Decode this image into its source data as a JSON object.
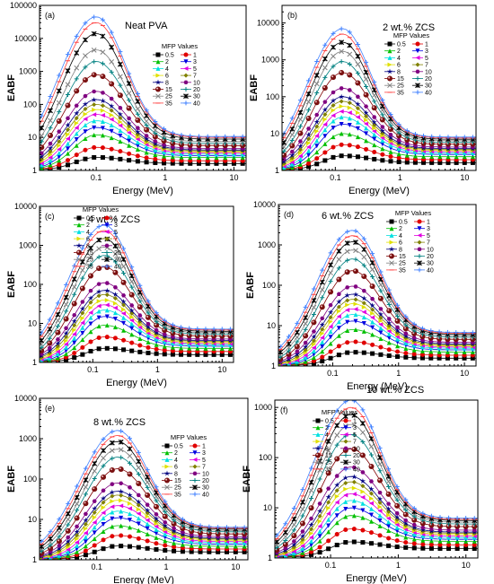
{
  "figure": {
    "shared": {
      "ylabel": "EABF",
      "xlabel": "Energy (MeV)",
      "legend_title": "MFP Values",
      "x_tick_labels": [
        "0.1",
        "1",
        "10"
      ],
      "mfp_values": [
        "0.5",
        "1",
        "2",
        "3",
        "4",
        "5",
        "6",
        "7",
        "8",
        "10",
        "15",
        "20",
        "25",
        "30",
        "35",
        "40"
      ],
      "series_colors": [
        "#000000",
        "#e00000",
        "#00c000",
        "#0000e0",
        "#00e0e0",
        "#e000e0",
        "#e0e000",
        "#808000",
        "#000080",
        "#800080",
        "#800000",
        "#008080",
        "#808080",
        "#000000",
        "#ff4040",
        "#4080ff"
      ],
      "series_markers": [
        "square",
        "circle",
        "triangle-up",
        "triangle-down",
        "triangle-up",
        "triangle-left",
        "triangle-right",
        "diamond",
        "star",
        "hexagon",
        "ball",
        "plus",
        "cross",
        "x-star",
        "dash",
        "plus"
      ],
      "x_scale": "log",
      "y_scale": "log",
      "xlim": [
        0.015,
        15
      ]
    },
    "panels": [
      {
        "id": "a",
        "tag": "(a)",
        "title": "Neat PVA",
        "peak_energy": 0.1,
        "peak_top": 45000,
        "yticks": [
          "1",
          "10",
          "100",
          "1000",
          "10000",
          "100000"
        ],
        "ylim": [
          1,
          100000
        ]
      },
      {
        "id": "b",
        "tag": "(b)",
        "title": "2 wt.% ZCS",
        "peak_energy": 0.13,
        "peak_top": 7000,
        "yticks": [
          "1",
          "10",
          "100",
          "1000",
          "10000"
        ],
        "ylim": [
          1,
          30000
        ]
      },
      {
        "id": "c",
        "tag": "(c)",
        "title": "4 wt.% ZCS",
        "peak_energy": 0.15,
        "peak_top": 3300,
        "yticks": [
          "1",
          "10",
          "100",
          "1000",
          "10000"
        ],
        "ylim": [
          1,
          10000
        ]
      },
      {
        "id": "d",
        "tag": "(d)",
        "title": "6 wt.% ZCS",
        "peak_energy": 0.2,
        "peak_top": 2300,
        "yticks": [
          "1",
          "10",
          "100",
          "1000",
          "10000"
        ],
        "ylim": [
          1,
          10000
        ]
      },
      {
        "id": "e",
        "tag": "(e)",
        "title": "8 wt.% ZCS",
        "peak_energy": 0.2,
        "peak_top": 1600,
        "yticks": [
          "1",
          "10",
          "100",
          "1000",
          "10000"
        ],
        "ylim": [
          1,
          10000
        ]
      },
      {
        "id": "f",
        "tag": "(f)",
        "title": "10 wt.% ZCS",
        "peak_energy": 0.2,
        "peak_top": 1400,
        "yticks": [
          "1",
          "10",
          "100",
          "1000"
        ],
        "ylim": [
          1,
          1400
        ]
      }
    ]
  },
  "chart_data": [
    {
      "type": "line",
      "panel": "(a)",
      "title": "Neat PVA",
      "xlabel": "Energy (MeV)",
      "ylabel": "EABF",
      "x_scale": "log",
      "y_scale": "log",
      "xlim": [
        0.015,
        15
      ],
      "ylim": [
        1,
        100000
      ],
      "series": [
        {
          "name": "0.5",
          "peak": 2.5
        },
        {
          "name": "1",
          "peak": 5
        },
        {
          "name": "2",
          "peak": 12
        },
        {
          "name": "3",
          "peak": 20
        },
        {
          "name": "4",
          "peak": 32
        },
        {
          "name": "5",
          "peak": 50
        },
        {
          "name": "6",
          "peak": 70
        },
        {
          "name": "7",
          "peak": 100
        },
        {
          "name": "8",
          "peak": 140
        },
        {
          "name": "10",
          "peak": 250
        },
        {
          "name": "15",
          "peak": 800
        },
        {
          "name": "20",
          "peak": 2000
        },
        {
          "name": "25",
          "peak": 4500
        },
        {
          "name": "30",
          "peak": 14000
        },
        {
          "name": "35",
          "peak": 30000
        },
        {
          "name": "40",
          "peak": 45000
        }
      ]
    },
    {
      "type": "line",
      "panel": "(b)",
      "title": "2 wt.% ZCS",
      "xlabel": "Energy (MeV)",
      "ylabel": "EABF",
      "x_scale": "log",
      "y_scale": "log",
      "xlim": [
        0.015,
        15
      ],
      "ylim": [
        1,
        30000
      ],
      "series": [
        {
          "name": "0.5",
          "peak": 2.5
        },
        {
          "name": "1",
          "peak": 5
        },
        {
          "name": "2",
          "peak": 10
        },
        {
          "name": "3",
          "peak": 18
        },
        {
          "name": "4",
          "peak": 28
        },
        {
          "name": "5",
          "peak": 40
        },
        {
          "name": "6",
          "peak": 55
        },
        {
          "name": "7",
          "peak": 75
        },
        {
          "name": "8",
          "peak": 100
        },
        {
          "name": "10",
          "peak": 170
        },
        {
          "name": "15",
          "peak": 450
        },
        {
          "name": "20",
          "peak": 900
        },
        {
          "name": "25",
          "peak": 1700
        },
        {
          "name": "30",
          "peak": 3000
        },
        {
          "name": "35",
          "peak": 5000
        },
        {
          "name": "40",
          "peak": 7000
        }
      ]
    },
    {
      "type": "line",
      "panel": "(c)",
      "title": "4 wt.% ZCS",
      "xlabel": "Energy (MeV)",
      "ylabel": "EABF",
      "x_scale": "log",
      "y_scale": "log",
      "xlim": [
        0.015,
        15
      ],
      "ylim": [
        1,
        10000
      ],
      "series": [
        {
          "name": "0.5",
          "peak": 2.3
        },
        {
          "name": "1",
          "peak": 4.5
        },
        {
          "name": "2",
          "peak": 9
        },
        {
          "name": "3",
          "peak": 15
        },
        {
          "name": "4",
          "peak": 22
        },
        {
          "name": "5",
          "peak": 30
        },
        {
          "name": "6",
          "peak": 40
        },
        {
          "name": "7",
          "peak": 55
        },
        {
          "name": "8",
          "peak": 70
        },
        {
          "name": "10",
          "peak": 110
        },
        {
          "name": "15",
          "peak": 280
        },
        {
          "name": "20",
          "peak": 550
        },
        {
          "name": "25",
          "peak": 900
        },
        {
          "name": "30",
          "peak": 1500
        },
        {
          "name": "35",
          "peak": 2400
        },
        {
          "name": "40",
          "peak": 3300
        }
      ]
    },
    {
      "type": "line",
      "panel": "(d)",
      "title": "6 wt.% ZCS",
      "xlabel": "Energy (MeV)",
      "ylabel": "EABF",
      "x_scale": "log",
      "y_scale": "log",
      "xlim": [
        0.015,
        15
      ],
      "ylim": [
        1,
        10000
      ],
      "series": [
        {
          "name": "0.5",
          "peak": 2.2
        },
        {
          "name": "1",
          "peak": 4
        },
        {
          "name": "2",
          "peak": 8
        },
        {
          "name": "3",
          "peak": 13
        },
        {
          "name": "4",
          "peak": 19
        },
        {
          "name": "5",
          "peak": 26
        },
        {
          "name": "6",
          "peak": 35
        },
        {
          "name": "7",
          "peak": 45
        },
        {
          "name": "8",
          "peak": 60
        },
        {
          "name": "10",
          "peak": 95
        },
        {
          "name": "15",
          "peak": 230
        },
        {
          "name": "20",
          "peak": 450
        },
        {
          "name": "25",
          "peak": 750
        },
        {
          "name": "30",
          "peak": 1200
        },
        {
          "name": "35",
          "peak": 1700
        },
        {
          "name": "40",
          "peak": 2300
        }
      ]
    },
    {
      "type": "line",
      "panel": "(e)",
      "title": "8 wt.% ZCS",
      "xlabel": "Energy (MeV)",
      "ylabel": "EABF",
      "x_scale": "log",
      "y_scale": "log",
      "xlim": [
        0.015,
        15
      ],
      "ylim": [
        1,
        10000
      ],
      "series": [
        {
          "name": "0.5",
          "peak": 2.2
        },
        {
          "name": "1",
          "peak": 4
        },
        {
          "name": "2",
          "peak": 7
        },
        {
          "name": "3",
          "peak": 11
        },
        {
          "name": "4",
          "peak": 16
        },
        {
          "name": "5",
          "peak": 22
        },
        {
          "name": "6",
          "peak": 30
        },
        {
          "name": "7",
          "peak": 40
        },
        {
          "name": "8",
          "peak": 50
        },
        {
          "name": "10",
          "peak": 80
        },
        {
          "name": "15",
          "peak": 180
        },
        {
          "name": "20",
          "peak": 350
        },
        {
          "name": "25",
          "peak": 550
        },
        {
          "name": "30",
          "peak": 850
        },
        {
          "name": "35",
          "peak": 1200
        },
        {
          "name": "40",
          "peak": 1600
        }
      ]
    },
    {
      "type": "line",
      "panel": "(f)",
      "title": "10 wt.% ZCS",
      "xlabel": "Energy (MeV)",
      "ylabel": "EABF",
      "x_scale": "log",
      "y_scale": "log",
      "xlim": [
        0.015,
        15
      ],
      "ylim": [
        1,
        1400
      ],
      "series": [
        {
          "name": "0.5",
          "peak": 2.1
        },
        {
          "name": "1",
          "peak": 3.8
        },
        {
          "name": "2",
          "peak": 7
        },
        {
          "name": "3",
          "peak": 10
        },
        {
          "name": "4",
          "peak": 14
        },
        {
          "name": "5",
          "peak": 19
        },
        {
          "name": "6",
          "peak": 25
        },
        {
          "name": "7",
          "peak": 33
        },
        {
          "name": "8",
          "peak": 42
        },
        {
          "name": "10",
          "peak": 65
        },
        {
          "name": "15",
          "peak": 150
        },
        {
          "name": "20",
          "peak": 290
        },
        {
          "name": "25",
          "peak": 460
        },
        {
          "name": "30",
          "peak": 720
        },
        {
          "name": "35",
          "peak": 1000
        },
        {
          "name": "40",
          "peak": 1400
        }
      ]
    }
  ]
}
